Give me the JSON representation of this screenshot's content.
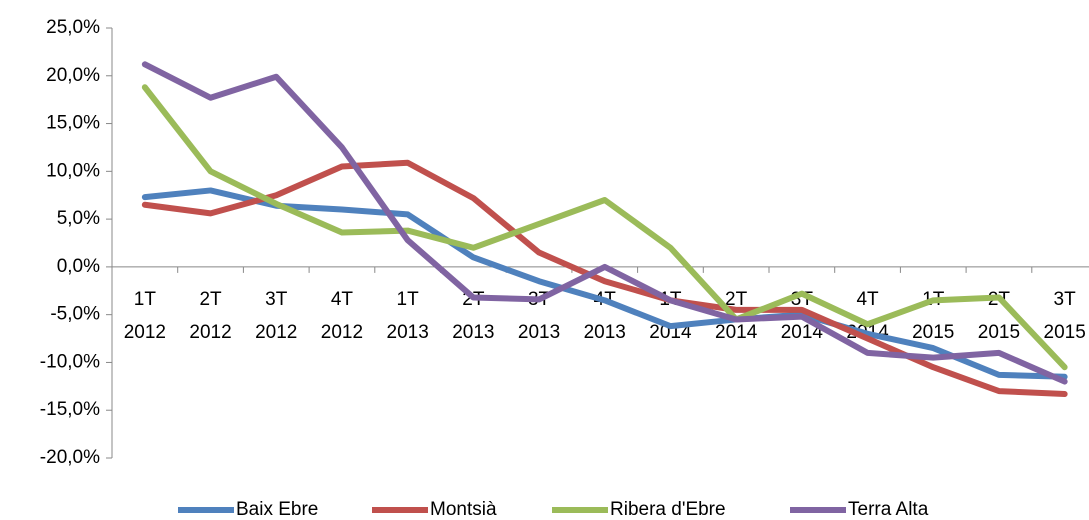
{
  "chart_data": {
    "type": "line",
    "categories": [
      [
        "1T",
        "2012"
      ],
      [
        "2T",
        "2012"
      ],
      [
        "3T",
        "2012"
      ],
      [
        "4T",
        "2012"
      ],
      [
        "1T",
        "2013"
      ],
      [
        "2T",
        "2013"
      ],
      [
        "3T",
        "2013"
      ],
      [
        "4T",
        "2013"
      ],
      [
        "1T",
        "2014"
      ],
      [
        "2T",
        "2014"
      ],
      [
        "3T",
        "2014"
      ],
      [
        "4T",
        "2014"
      ],
      [
        "1T",
        "2015"
      ],
      [
        "2T",
        "2015"
      ],
      [
        "3T",
        "2015"
      ]
    ],
    "series": [
      {
        "name": "Baix Ebre",
        "color": "#4f81bd",
        "values": [
          7.3,
          8.0,
          6.4,
          6.0,
          5.5,
          1.0,
          -1.5,
          -3.5,
          -6.2,
          -5.5,
          -5.0,
          -7.0,
          -8.5,
          -11.3,
          -11.5
        ]
      },
      {
        "name": "Montsià",
        "color": "#c0504d",
        "values": [
          6.5,
          5.6,
          7.5,
          10.5,
          10.9,
          7.2,
          1.5,
          -1.5,
          -3.5,
          -4.5,
          -4.5,
          -7.5,
          -10.5,
          -13.0,
          -13.3
        ]
      },
      {
        "name": "Ribera d'Ebre",
        "color": "#9bbb59",
        "values": [
          18.8,
          10.0,
          6.6,
          3.6,
          3.8,
          2.0,
          4.5,
          7.0,
          2.0,
          -5.5,
          -2.8,
          -6.0,
          -3.5,
          -3.2,
          -10.5
        ]
      },
      {
        "name": "Terra Alta",
        "color": "#8064a2",
        "values": [
          21.2,
          17.7,
          19.9,
          12.5,
          2.8,
          -3.2,
          -3.4,
          0.0,
          -3.5,
          -5.5,
          -5.2,
          -9.0,
          -9.5,
          -9.0,
          -12.0
        ]
      }
    ],
    "ylim": [
      -20,
      25
    ],
    "yticks": [
      {
        "value": -20,
        "label": "-20,0%"
      },
      {
        "value": -15,
        "label": "-15,0%"
      },
      {
        "value": -10,
        "label": "-10,0%"
      },
      {
        "value": -5,
        "label": "-5,0%"
      },
      {
        "value": 0,
        "label": "0,0%"
      },
      {
        "value": 5,
        "label": "5,0%"
      },
      {
        "value": 10,
        "label": "10,0%"
      },
      {
        "value": 15,
        "label": "15,0%"
      },
      {
        "value": 20,
        "label": "20,0%"
      },
      {
        "value": 25,
        "label": "25,0%"
      }
    ],
    "legend": "bottom"
  }
}
